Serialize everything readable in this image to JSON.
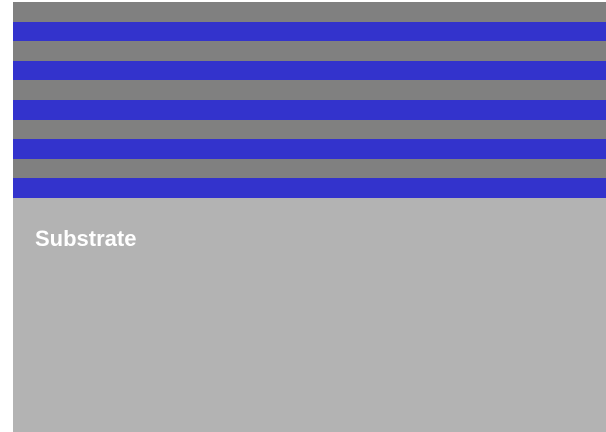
{
  "diagram": {
    "layer_sequence": [
      "gray",
      "blue",
      "gray",
      "blue",
      "gray",
      "blue",
      "gray",
      "blue",
      "gray",
      "blue"
    ],
    "colors": {
      "gray": "#808080",
      "blue": "#3333cc",
      "substrate": "#b3b3b3",
      "label": "#ffffff"
    },
    "substrate": {
      "label": "Substrate"
    }
  }
}
